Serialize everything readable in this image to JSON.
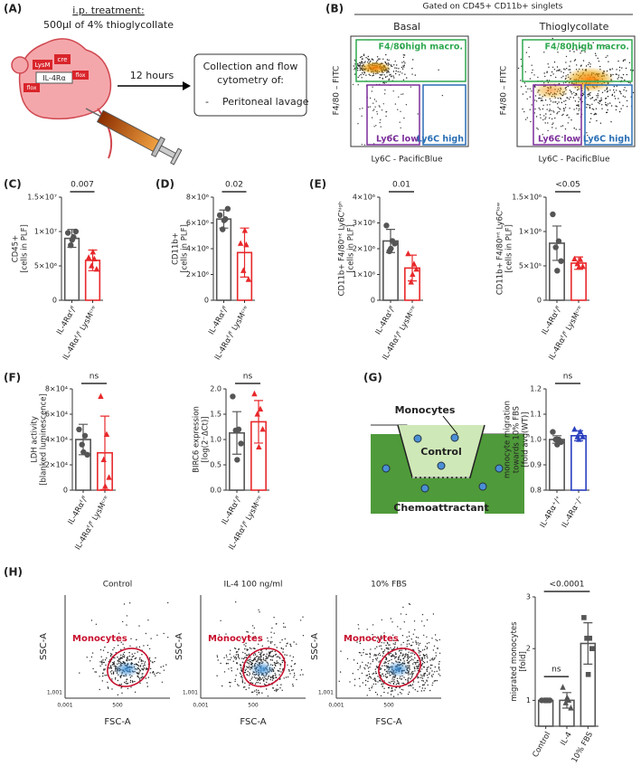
{
  "panel_labels": {
    "a": "(A)",
    "b": "(B)",
    "c": "(C)",
    "d": "(D)",
    "e": "(E)",
    "f": "(F)",
    "g": "(G)",
    "h": "(H)"
  },
  "panel_a": {
    "treatment_title": "i.p. treatment:",
    "treatment_dose": "500µl of 4% thioglycollate",
    "duration": "12 hours",
    "collection_lines": [
      "Collection and flow",
      "cytometry of:"
    ],
    "bullet": "-",
    "sample": "Peritoneal lavage",
    "gene_labels": [
      "LysM",
      "cre",
      "IL-4Rα",
      "flox",
      "flox"
    ]
  },
  "panel_b": {
    "header": "Gated on CD45+ CD11b+ singlets",
    "plots": [
      "Basal",
      "Thioglycollate"
    ],
    "y_label": "F4/80 – FITC",
    "x_label": "Ly6C - PacificBlue",
    "gates": [
      "F4/80high macro.",
      "Ly6C low",
      "Ly6C high"
    ]
  },
  "panel_g_diagram": {
    "top": "Monocytes",
    "insert": "Control",
    "bottom": "Chemoattractant"
  },
  "panel_h_flow": {
    "plots": [
      "Control",
      "IL-4 100 ng/ml",
      "10% FBS"
    ],
    "y_label": "SSC-A",
    "x_label": "FSC-A",
    "gate": "Monocytes",
    "x_ticks": [
      "0,001",
      "500"
    ],
    "y_ticks": [
      "1,001"
    ]
  },
  "chart_data": [
    {
      "type": "bar",
      "ylabel": [
        "CD45+",
        "[cells in PLF]"
      ],
      "categories": [
        "IL-4Rαᶠ/ᶠ",
        "IL-4Rαᶠ/ᶠ LysMᶜʳᵉ"
      ],
      "colors": [
        "#555555",
        "#e8282b"
      ],
      "markers": [
        "circle",
        "triangle"
      ],
      "values": [
        9000000,
        5800000
      ],
      "errors": [
        1300000,
        1500000
      ],
      "points": [
        [
          9800000,
          9200000,
          8000000,
          10000000,
          8800000
        ],
        [
          6200000,
          6000000,
          5000000,
          4500000,
          7000000
        ]
      ],
      "ylim": [
        0,
        15000000
      ],
      "yticks": [
        0,
        {
          "value": 5000000,
          "label": "5×10⁶"
        },
        {
          "value": 10000000,
          "label": "1×10⁷"
        },
        {
          "value": 15000000,
          "label": "1.5×10⁷"
        }
      ],
      "comparisons": [
        {
          "label": "0.007",
          "between": [
            "IL-4Rαᶠ/ᶠ",
            "IL-4Rαᶠ/ᶠ LysMᶜʳᵉ"
          ]
        }
      ]
    },
    {
      "type": "bar",
      "ylabel": [
        "CD11b+",
        "[cells in PLF]"
      ],
      "categories": [
        "IL-4Rαᶠ/ᶠ",
        "IL-4Rαᶠ/ᶠ LysMᶜʳᵉ"
      ],
      "colors": [
        "#555555",
        "#e8282b"
      ],
      "markers": [
        "circle",
        "triangle"
      ],
      "values": [
        6300000,
        3700000
      ],
      "errors": [
        700000,
        1900000
      ],
      "points": [
        [
          6600000,
          6300000,
          5500000,
          7100000,
          6200000
        ],
        [
          4400000,
          4300000,
          2300000,
          1600000,
          5400000
        ]
      ],
      "ylim": [
        0,
        8000000
      ],
      "yticks": [
        0,
        {
          "value": 2000000,
          "label": "2×10⁶"
        },
        {
          "value": 4000000,
          "label": "4×10⁶"
        },
        {
          "value": 6000000,
          "label": "6×10⁶"
        },
        {
          "value": 8000000,
          "label": "8×10⁶"
        }
      ],
      "comparisons": [
        {
          "label": "0.02",
          "between": [
            "IL-4Rαᶠ/ᶠ",
            "IL-4Rαᶠ/ᶠ LysMᶜʳᵉ"
          ]
        }
      ]
    },
    {
      "type": "bar",
      "ylabel": [
        "CD11b+ F4/80ⁱⁿᵗ Ly6Cʰⁱᵍʰ",
        "[cells in PLF]"
      ],
      "categories": [
        "IL-4Rαᶠ/ᶠ",
        "IL-4Rαᶠ/ᶠ LysMᶜʳᵉ"
      ],
      "colors": [
        "#555555",
        "#e8282b"
      ],
      "markers": [
        "circle",
        "triangle"
      ],
      "values": [
        2300000,
        1250000
      ],
      "errors": [
        450000,
        500000
      ],
      "points": [
        [
          2900000,
          2300000,
          1900000,
          2200000,
          2000000
        ],
        [
          1800000,
          1400000,
          700000,
          1200000,
          1000000
        ]
      ],
      "ylim": [
        0,
        4000000
      ],
      "yticks": [
        0,
        {
          "value": 1000000,
          "label": "1×10⁶"
        },
        {
          "value": 2000000,
          "label": "2×10⁶"
        },
        {
          "value": 3000000,
          "label": "3×10⁶"
        },
        {
          "value": 4000000,
          "label": "4×10⁶"
        }
      ],
      "comparisons": [
        {
          "label": "0.01",
          "between": [
            "IL-4Rαᶠ/ᶠ",
            "IL-4Rαᶠ/ᶠ LysMᶜʳᵉ"
          ]
        }
      ]
    },
    {
      "type": "bar",
      "ylabel": [
        "CD11b+ F4/80ⁱⁿᵗ Ly6Cˡᵒʷ",
        "[cells in PLF]"
      ],
      "categories": [
        "IL-4Rαᶠ/ᶠ",
        "IL-4Rαᶠ/ᶠ LysMᶜʳᵉ"
      ],
      "colors": [
        "#555555",
        "#e8282b"
      ],
      "markers": [
        "circle",
        "triangle"
      ],
      "values": [
        830000,
        540000
      ],
      "errors": [
        250000,
        90000
      ],
      "points": [
        [
          1250000,
          860000,
          770000,
          570000,
          430000
        ],
        [
          600000,
          590000,
          530000,
          490000,
          480000
        ]
      ],
      "ylim": [
        0,
        1500000
      ],
      "yticks": [
        0,
        {
          "value": 500000,
          "label": "5×10⁵"
        },
        {
          "value": 1000000,
          "label": "1×10⁶"
        },
        {
          "value": 1500000,
          "label": "1.5×10⁶"
        }
      ],
      "comparisons": [
        {
          "label": "<0.05",
          "between": [
            "IL-4Rαᶠ/ᶠ",
            "IL-4Rαᶠ/ᶠ LysMᶜʳᵉ"
          ]
        }
      ]
    },
    {
      "type": "bar",
      "ylabel": [
        "LDH activity",
        "[blanked luminescence]"
      ],
      "categories": [
        "IL-4Rαᶠ/ᶠ",
        "IL-4Rαᶠ/ᶠ LysMᶜʳᵉ"
      ],
      "colors": [
        "#555555",
        "#e8282b"
      ],
      "markers": [
        "circle",
        "triangle"
      ],
      "values": [
        40000,
        29500
      ],
      "errors": [
        12000,
        29000
      ],
      "points": [
        [
          48000,
          43000,
          36000,
          28000,
          30000
        ],
        [
          74000,
          44000,
          24000,
          10000,
          3000
        ]
      ],
      "ylim": [
        0,
        80000
      ],
      "yticks": [
        0,
        {
          "value": 20000,
          "label": "2×10⁴"
        },
        {
          "value": 40000,
          "label": "4×10⁴"
        },
        {
          "value": 60000,
          "label": "6×10⁴"
        },
        {
          "value": 80000,
          "label": "8×10⁴"
        }
      ],
      "comparisons": [
        {
          "label": "ns",
          "between": [
            "IL-4Rαᶠ/ᶠ",
            "IL-4Rαᶠ/ᶠ LysMᶜʳᵉ"
          ]
        }
      ]
    },
    {
      "type": "bar",
      "ylabel": [
        "BIRC6 expression",
        "[log(2⁻ΔCt)]"
      ],
      "categories": [
        "IL-4Rαᶠ/ᶠ",
        "IL-4Rαᶠ/ᶠ LysMᶜʳᵉ"
      ],
      "colors": [
        "#555555",
        "#e8282b"
      ],
      "markers": [
        "circle",
        "triangle"
      ],
      "values": [
        1.13,
        1.35
      ],
      "errors": [
        0.42,
        0.42
      ],
      "points": [
        [
          1.85,
          1.2,
          1.18,
          0.92,
          0.6
        ],
        [
          1.9,
          1.6,
          1.5,
          1.2,
          0.85
        ]
      ],
      "ylim": [
        0,
        2
      ],
      "yticks": [
        {
          "value": 0,
          "label": "0.0"
        },
        0.5,
        {
          "value": 1,
          "label": "1.0"
        },
        1.5,
        {
          "value": 2,
          "label": "2.0"
        }
      ],
      "comparisons": [
        {
          "label": "ns",
          "between": [
            "IL-4Rαᶠ/ᶠ",
            "IL-4Rαᶠ/ᶠ LysMᶜʳᵉ"
          ]
        }
      ]
    },
    {
      "type": "bar",
      "ylabel": [
        "monocyte migration",
        "towards 10% FBS",
        "[fold avg(WT)]"
      ],
      "categories": [
        "IL-4Rα⁺/⁺",
        "IL-4Rα⁻/⁻"
      ],
      "colors": [
        "#555555",
        "#2a3fbf"
      ],
      "markers": [
        "circle",
        "triangle"
      ],
      "values": [
        1.0,
        1.015
      ],
      "errors": [
        0.015,
        0.02
      ],
      "points": [
        [
          1.03,
          1.0,
          1.0,
          0.99,
          0.98
        ],
        [
          1.04,
          1.03,
          1.01,
          1.01,
          1.0
        ]
      ],
      "ylim": [
        0.8,
        1.2
      ],
      "yticks": [
        0.8,
        0.9,
        {
          "value": 1,
          "label": "1.0"
        },
        1.1,
        1.2
      ],
      "comparisons": [
        {
          "label": "ns",
          "between": [
            "IL-4Rα⁺/⁺",
            "IL-4Rα⁻/⁻"
          ]
        }
      ]
    },
    {
      "type": "bar",
      "ylabel": [
        "migrated monocytes",
        "[fold]"
      ],
      "categories": [
        "Control",
        "IL-4",
        "10% FBS"
      ],
      "colors": [
        "#555555",
        "#555555",
        "#555555"
      ],
      "markers": [
        "circle",
        "triangle",
        "square"
      ],
      "values": [
        1.0,
        1.0,
        2.1
      ],
      "errors": [
        0,
        0.15,
        0.4
      ],
      "points": [
        [
          1,
          1,
          1,
          1,
          1
        ],
        [
          1.25,
          1.0,
          0.95,
          0.85,
          1.05
        ],
        [
          2.6,
          2.2,
          2.2,
          2.0,
          1.5
        ]
      ],
      "ylim": [
        0.5,
        3
      ],
      "yticks": [
        1,
        2,
        3
      ],
      "comparisons": [
        {
          "label": "ns",
          "between": [
            "Control",
            "IL-4"
          ]
        },
        {
          "label": "<0.0001",
          "between": [
            "Control",
            "10% FBS"
          ]
        }
      ]
    }
  ]
}
